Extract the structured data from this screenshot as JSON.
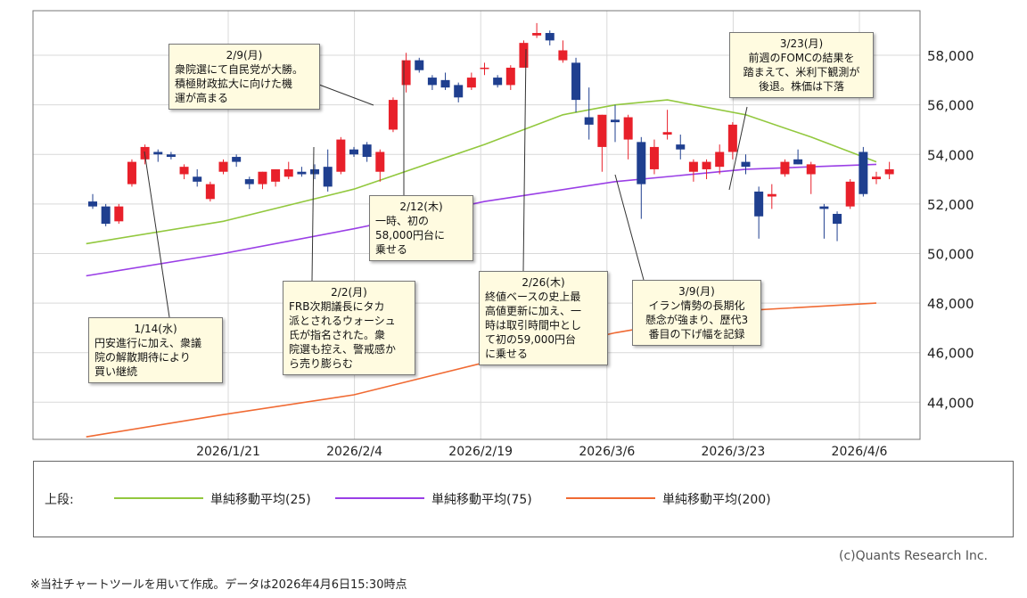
{
  "chart_data": {
    "type": "candlestick",
    "yticks": [
      "58,000",
      "56,000",
      "54,000",
      "52,000",
      "50,000",
      "48,000",
      "46,000",
      "44,000"
    ],
    "ytick_values": [
      58000,
      56000,
      54000,
      52000,
      50000,
      48000,
      46000,
      44000
    ],
    "ylim": [
      42500,
      59800
    ],
    "xticks": [
      "2026/1/21",
      "2026/2/4",
      "2026/2/19",
      "2026/3/6",
      "2026/3/23",
      "2026/4/6"
    ],
    "xtick_index": [
      10,
      20,
      30,
      40,
      50,
      60
    ],
    "n_days": 60,
    "grid": true,
    "up_color": "#e8202a",
    "down_color": "#1f3f8f",
    "candles": [
      {
        "o": 52100,
        "h": 52400,
        "l": 51800,
        "c": 51900
      },
      {
        "o": 51900,
        "h": 52000,
        "l": 51100,
        "c": 51200
      },
      {
        "o": 51300,
        "h": 52000,
        "l": 51200,
        "c": 51900
      },
      {
        "o": 52800,
        "h": 53800,
        "l": 52700,
        "c": 53700
      },
      {
        "o": 53800,
        "h": 54400,
        "l": 53600,
        "c": 54300
      },
      {
        "o": 54100,
        "h": 54200,
        "l": 53700,
        "c": 54000
      },
      {
        "o": 54000,
        "h": 54100,
        "l": 53800,
        "c": 53900
      },
      {
        "o": 53200,
        "h": 53600,
        "l": 53000,
        "c": 53500
      },
      {
        "o": 53100,
        "h": 53400,
        "l": 52700,
        "c": 52900
      },
      {
        "o": 52200,
        "h": 52900,
        "l": 52100,
        "c": 52800
      },
      {
        "o": 53300,
        "h": 53800,
        "l": 53200,
        "c": 53700
      },
      {
        "o": 53900,
        "h": 54000,
        "l": 53500,
        "c": 53700
      },
      {
        "o": 53000,
        "h": 53100,
        "l": 52600,
        "c": 52800
      },
      {
        "o": 52800,
        "h": 53300,
        "l": 52600,
        "c": 53300
      },
      {
        "o": 52900,
        "h": 53400,
        "l": 52700,
        "c": 53400
      },
      {
        "o": 53100,
        "h": 53700,
        "l": 53000,
        "c": 53400
      },
      {
        "o": 53300,
        "h": 53500,
        "l": 53100,
        "c": 53200
      },
      {
        "o": 53400,
        "h": 53600,
        "l": 53000,
        "c": 53200
      },
      {
        "o": 53500,
        "h": 54200,
        "l": 52500,
        "c": 52700
      },
      {
        "o": 53300,
        "h": 54700,
        "l": 53200,
        "c": 54600
      },
      {
        "o": 54200,
        "h": 54300,
        "l": 53900,
        "c": 54000
      },
      {
        "o": 54400,
        "h": 54500,
        "l": 53700,
        "c": 53900
      },
      {
        "o": 53300,
        "h": 54200,
        "l": 52900,
        "c": 54100
      },
      {
        "o": 55000,
        "h": 56300,
        "l": 54900,
        "c": 56200
      },
      {
        "o": 56800,
        "h": 58100,
        "l": 56500,
        "c": 57800
      },
      {
        "o": 57800,
        "h": 57900,
        "l": 57300,
        "c": 57400
      },
      {
        "o": 57100,
        "h": 57200,
        "l": 56600,
        "c": 56800
      },
      {
        "o": 57000,
        "h": 57300,
        "l": 56600,
        "c": 56700
      },
      {
        "o": 56800,
        "h": 56900,
        "l": 56100,
        "c": 56300
      },
      {
        "o": 56700,
        "h": 57300,
        "l": 56600,
        "c": 57100
      },
      {
        "o": 57500,
        "h": 57700,
        "l": 57200,
        "c": 57500
      },
      {
        "o": 57100,
        "h": 57200,
        "l": 56700,
        "c": 56800
      },
      {
        "o": 56800,
        "h": 57600,
        "l": 56600,
        "c": 57500
      },
      {
        "o": 57500,
        "h": 58600,
        "l": 57500,
        "c": 58500
      },
      {
        "o": 58800,
        "h": 59300,
        "l": 58700,
        "c": 58900
      },
      {
        "o": 58900,
        "h": 59000,
        "l": 58400,
        "c": 58600
      },
      {
        "o": 57800,
        "h": 58600,
        "l": 57700,
        "c": 58200
      },
      {
        "o": 57700,
        "h": 57900,
        "l": 55700,
        "c": 56200
      },
      {
        "o": 55500,
        "h": 56700,
        "l": 54600,
        "c": 55200
      },
      {
        "o": 54300,
        "h": 55600,
        "l": 53300,
        "c": 55600
      },
      {
        "o": 55400,
        "h": 56000,
        "l": 54500,
        "c": 55300
      },
      {
        "o": 54600,
        "h": 55600,
        "l": 53800,
        "c": 55500
      },
      {
        "o": 54500,
        "h": 54700,
        "l": 51400,
        "c": 52800
      },
      {
        "o": 53400,
        "h": 54600,
        "l": 53200,
        "c": 54300
      },
      {
        "o": 54800,
        "h": 55800,
        "l": 54600,
        "c": 54900
      },
      {
        "o": 54400,
        "h": 54800,
        "l": 53800,
        "c": 54200
      },
      {
        "o": 53300,
        "h": 53800,
        "l": 52900,
        "c": 53700
      },
      {
        "o": 53400,
        "h": 53800,
        "l": 53000,
        "c": 53700
      },
      {
        "o": 53500,
        "h": 54400,
        "l": 53200,
        "c": 54100
      },
      {
        "o": 54100,
        "h": 55300,
        "l": 53800,
        "c": 55200
      },
      {
        "o": 53700,
        "h": 54000,
        "l": 53200,
        "c": 53500
      },
      {
        "o": 52500,
        "h": 52700,
        "l": 50600,
        "c": 51500
      },
      {
        "o": 52300,
        "h": 52800,
        "l": 51800,
        "c": 52400
      },
      {
        "o": 53200,
        "h": 53800,
        "l": 53100,
        "c": 53700
      },
      {
        "o": 53800,
        "h": 54200,
        "l": 53600,
        "c": 53600
      },
      {
        "o": 53200,
        "h": 53700,
        "l": 52400,
        "c": 53600
      },
      {
        "o": 51900,
        "h": 52000,
        "l": 50600,
        "c": 51800
      },
      {
        "o": 51600,
        "h": 51700,
        "l": 50500,
        "c": 51200
      },
      {
        "o": 51900,
        "h": 53000,
        "l": 51800,
        "c": 52900
      },
      {
        "o": 54100,
        "h": 54300,
        "l": 52300,
        "c": 52400
      },
      {
        "o": 53000,
        "h": 53300,
        "l": 52800,
        "c": 53100
      },
      {
        "o": 53200,
        "h": 53700,
        "l": 53000,
        "c": 53400
      }
    ],
    "series": [
      {
        "name": "単純移動平均(25)",
        "color": "#92c83e",
        "points": [
          [
            -0.5,
            50400
          ],
          [
            10,
            51300
          ],
          [
            20,
            52600
          ],
          [
            30,
            54400
          ],
          [
            36,
            55600
          ],
          [
            40,
            56000
          ],
          [
            44,
            56200
          ],
          [
            50,
            55600
          ],
          [
            55,
            54700
          ],
          [
            60,
            53700
          ]
        ]
      },
      {
        "name": "単純移動平均(75)",
        "color": "#9a3fe6",
        "points": [
          [
            -0.5,
            49100
          ],
          [
            10,
            50000
          ],
          [
            20,
            51000
          ],
          [
            30,
            52100
          ],
          [
            40,
            52900
          ],
          [
            50,
            53400
          ],
          [
            60,
            53600
          ]
        ]
      },
      {
        "name": "単純移動平均(200)",
        "color": "#f06a33",
        "points": [
          [
            -0.5,
            42600
          ],
          [
            10,
            43500
          ],
          [
            20,
            44300
          ],
          [
            30,
            45600
          ],
          [
            40,
            46800
          ],
          [
            50,
            47700
          ],
          [
            60,
            48000
          ]
        ]
      }
    ]
  },
  "annotations": [
    {
      "date": "2/9(月)",
      "text": "衆院選にて自民党が大勝。\n積極財政拡大に向けた機\n運が高まる"
    },
    {
      "date": "2/12(木)",
      "text": "一時、初の\n58,000円台に\n乗せる"
    },
    {
      "date": "3/23(月)",
      "text": "前週のFOMCの結果を\n踏まえて、米利下観測が\n後退。株価は下落"
    },
    {
      "date": "2/2(月)",
      "text": "FRB次期議長にタカ\n派とされるウォーシュ\n氏が指名された。衆\n院選も控え、警戒感か\nら売り膨らむ"
    },
    {
      "date": "2/26(木)",
      "text": "終値ベースの史上最\n高値更新に加え、一\n時は取引時間中とし\nて初の59,000円台\nに乗せる"
    },
    {
      "date": "3/9(月)",
      "text": "イラン情勢の長期化\n懸念が強まり、歴代3\n番目の下げ幅を記録"
    },
    {
      "date": "1/14(水)",
      "text": "円安進行に加え、衆議\n院の解散期待により\n買い継続"
    }
  ],
  "legend": {
    "prefix": "上段:",
    "items": [
      "単純移動平均(25)",
      "単純移動平均(75)",
      "単純移動平均(200)"
    ]
  },
  "copyright": "(c)Quants Research Inc.",
  "footnote": "※当社チャートツールを用いて作成。データは2026年4月6日15:30時点"
}
